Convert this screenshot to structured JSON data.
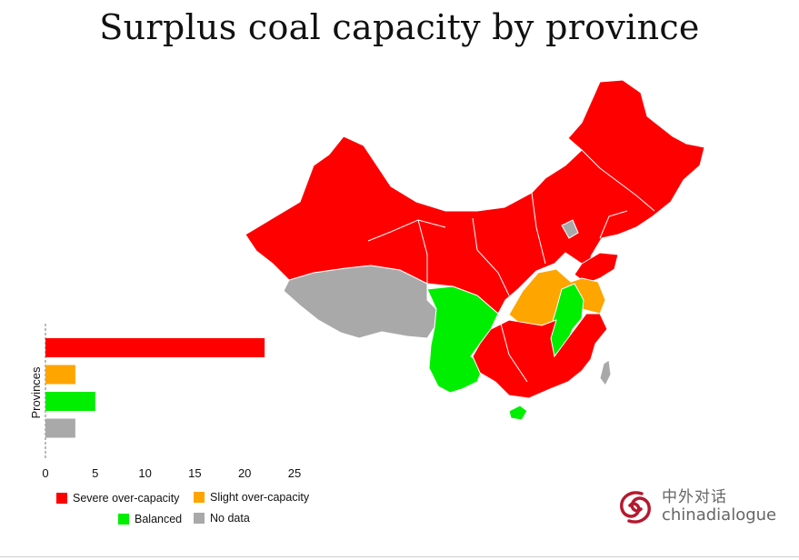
{
  "title": "Surplus coal capacity by province",
  "colors": {
    "severe": "#ff0000",
    "slight": "#ffa500",
    "balanced": "#00ee00",
    "nodata": "#a9a9a9"
  },
  "chart_data": {
    "type": "bar",
    "orientation": "horizontal",
    "title": "Surplus coal capacity by province",
    "ylabel": "Provinces",
    "xlabel": "",
    "categories": [
      "Severe over-capacity",
      "Slight over-capacity",
      "Balanced",
      "No data"
    ],
    "values": [
      22,
      3,
      5,
      3
    ],
    "bar_colors": [
      "#ff0000",
      "#ffa500",
      "#00ee00",
      "#a9a9a9"
    ],
    "xlim": [
      0,
      25
    ],
    "xticks": [
      0,
      5,
      10,
      15,
      20,
      25
    ],
    "grid": false,
    "legend_placement": "bottom-left"
  },
  "legend": {
    "items": [
      {
        "label": "Severe over-capacity",
        "color": "#ff0000"
      },
      {
        "label": "Slight over-capacity",
        "color": "#ffa500"
      },
      {
        "label": "Balanced",
        "color": "#00ee00"
      },
      {
        "label": "No data",
        "color": "#a9a9a9"
      }
    ]
  },
  "logo": {
    "icon": "chinadialogue-swirl-icon",
    "cn_text": "中外对话",
    "en_text": "chinadialogue",
    "color": "#b5192f"
  }
}
